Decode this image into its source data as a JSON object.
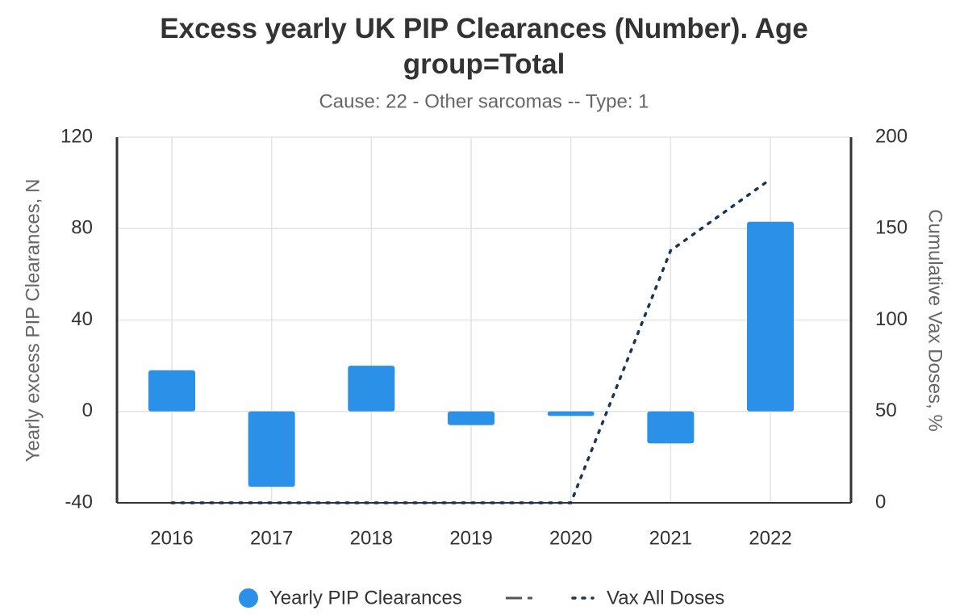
{
  "chart_data": {
    "type": "bar",
    "title": "Excess yearly UK PIP Clearances (Number). Age group=Total",
    "subtitle": "Cause: 22 - Other sarcomas -- Type: 1",
    "y_label": "Yearly excess PIP Clearances, N",
    "y2_label": "Cumulative Vax Doses, %",
    "categories": [
      "2016",
      "2017",
      "2018",
      "2019",
      "2020",
      "2021",
      "2022"
    ],
    "series": [
      {
        "name": "Yearly PIP Clearances",
        "type": "bar",
        "color": "#2b90e8",
        "values": [
          18,
          -33,
          20,
          -6,
          -2,
          -14,
          83
        ]
      },
      {
        "name": "Vax All Doses",
        "type": "line",
        "axis": "y2",
        "color": "#1a3556",
        "values": [
          0,
          0,
          0,
          0,
          0,
          138,
          177
        ]
      }
    ],
    "ylim": [
      -40,
      120
    ],
    "yticks": [
      -40,
      0,
      40,
      80,
      120
    ],
    "y2lim": [
      0,
      200
    ],
    "y2ticks": [
      0,
      50,
      100,
      150,
      200
    ],
    "grid": true
  }
}
